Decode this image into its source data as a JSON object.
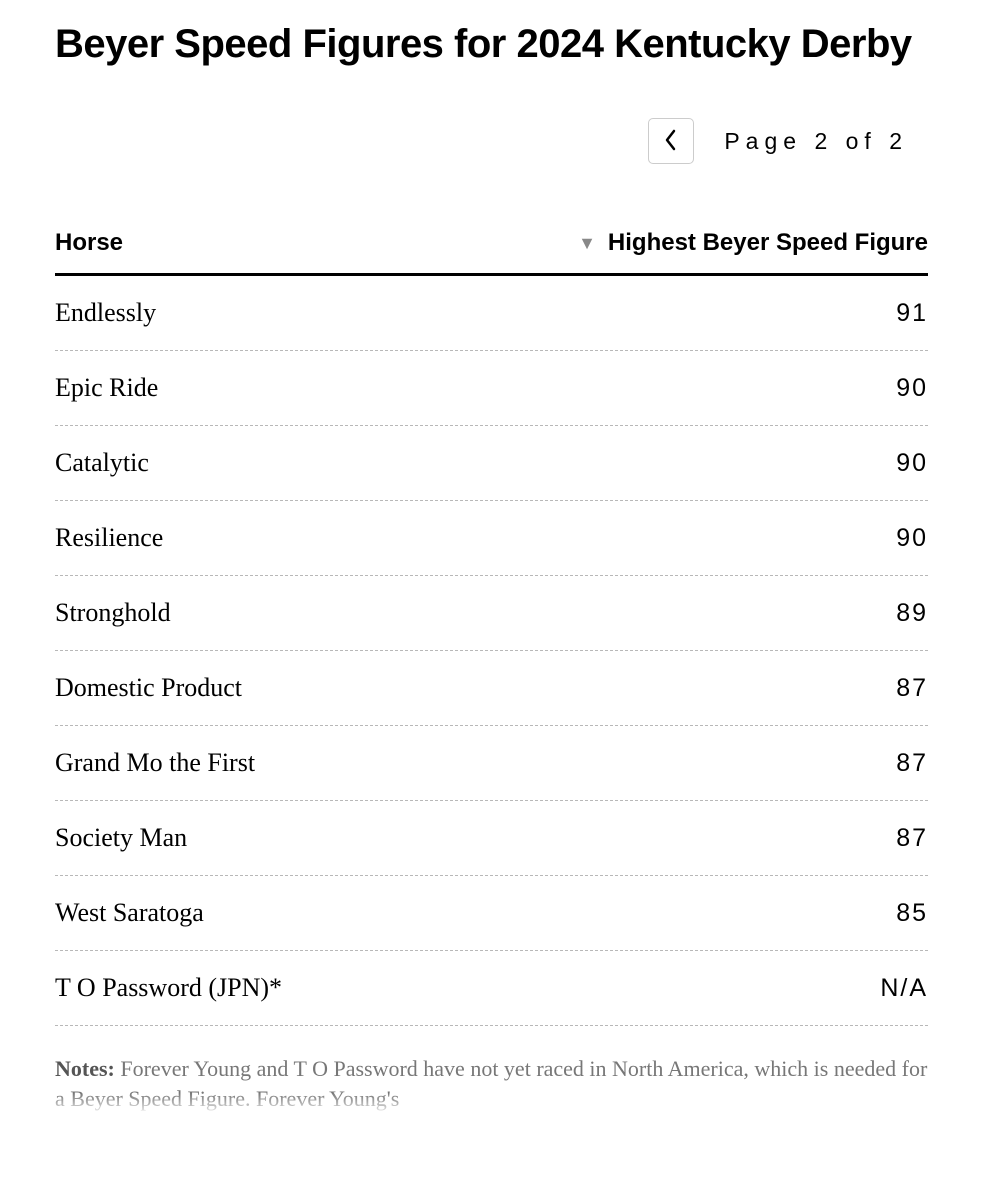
{
  "title": "Beyer Speed Figures for 2024 Kentucky Derby",
  "pagination": {
    "page_text": "Page 2 of 2"
  },
  "table": {
    "columns": {
      "horse": "Horse",
      "figure": "Highest Beyer Speed Figure"
    },
    "sort_indicator": "▼",
    "rows": [
      {
        "horse": "Endlessly",
        "figure": "91"
      },
      {
        "horse": "Epic Ride",
        "figure": "90"
      },
      {
        "horse": "Catalytic",
        "figure": "90"
      },
      {
        "horse": "Resilience",
        "figure": "90"
      },
      {
        "horse": "Stronghold",
        "figure": "89"
      },
      {
        "horse": "Domestic Product",
        "figure": "87"
      },
      {
        "horse": "Grand Mo the First",
        "figure": "87"
      },
      {
        "horse": "Society Man",
        "figure": "87"
      },
      {
        "horse": "West Saratoga",
        "figure": "85"
      },
      {
        "horse": "T O Password (JPN)*",
        "figure": "N/A"
      }
    ]
  },
  "notes": {
    "label": "Notes:",
    "text": " Forever Young and T O Password have not yet raced in North America, which is needed for a Beyer Speed Figure. Forever Young's"
  },
  "styling": {
    "background_color": "#ffffff",
    "title_color": "#000000",
    "border_dash_color": "#b8b8b8",
    "header_border_color": "#000000",
    "horse_font": "Georgia",
    "figure_font": "Helvetica Neue",
    "notes_color": "#666666"
  }
}
